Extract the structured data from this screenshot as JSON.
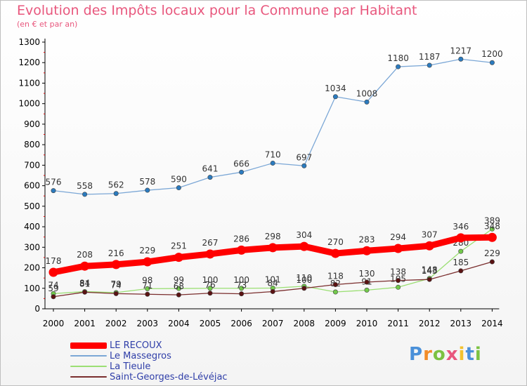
{
  "header": {
    "title": "Evolution des Impôts locaux pour la Commune par Habitant",
    "subtitle": "(en € et par an)"
  },
  "chart_data": {
    "type": "line",
    "title": "Evolution des Impôts locaux pour la Commune par Habitant",
    "subtitle": "(en € et par an)",
    "xlabel": "",
    "ylabel": "",
    "ylim": [
      0,
      1300
    ],
    "ytick_step": 100,
    "grid": false,
    "legend_position": "bottom-left",
    "x": [
      "2000",
      "2001",
      "2002",
      "2003",
      "2004",
      "2005",
      "2006",
      "2007",
      "2008",
      "2009",
      "2010",
      "2011",
      "2012",
      "2013",
      "2014"
    ],
    "series": [
      {
        "name": "Le Massegros",
        "color": "#7ba7d6",
        "marker_color": "#2b7bbf",
        "values": [
          576,
          558,
          562,
          578,
          590,
          641,
          666,
          710,
          697,
          1034,
          1008,
          1180,
          1187,
          1217,
          1200
        ]
      },
      {
        "name": "La Tieule",
        "color": "#9bdf73",
        "marker_color": "#72c94b",
        "values": [
          74,
          84,
          79,
          98,
          99,
          100,
          100,
          101,
          110,
          82,
          91,
          105,
          148,
          280,
          389
        ]
      },
      {
        "name": "Saint-Georges-de-Lévéjac",
        "color": "#7a2d2d",
        "marker_color": "#5a1212",
        "values": [
          59,
          81,
          74,
          71,
          68,
          76,
          73,
          84,
          100,
          118,
          130,
          138,
          143,
          185,
          229
        ]
      },
      {
        "name": "LE RECOUX",
        "color": "#ff0000",
        "marker_color": "#ff0000",
        "values": [
          178,
          208,
          216,
          229,
          251,
          267,
          286,
          298,
          304,
          270,
          283,
          294,
          307,
          346,
          348
        ]
      }
    ]
  },
  "legend": [
    {
      "label": "LE RECOUX",
      "color": "#ff0000"
    },
    {
      "label": "Le Massegros",
      "color": "#7ba7d6"
    },
    {
      "label": "La Tieule",
      "color": "#9bdf73"
    },
    {
      "label": "Saint-Georges-de-Lévéjac",
      "color": "#7a2d2d"
    }
  ],
  "logo": {
    "letters": [
      "P",
      "r",
      "o",
      "x",
      "i",
      "t",
      "i"
    ],
    "colors": [
      "#4a90d9",
      "#f28c28",
      "#7cc242",
      "#e8577d",
      "#f2c12e",
      "#4a90d9",
      "#7cc242"
    ]
  }
}
